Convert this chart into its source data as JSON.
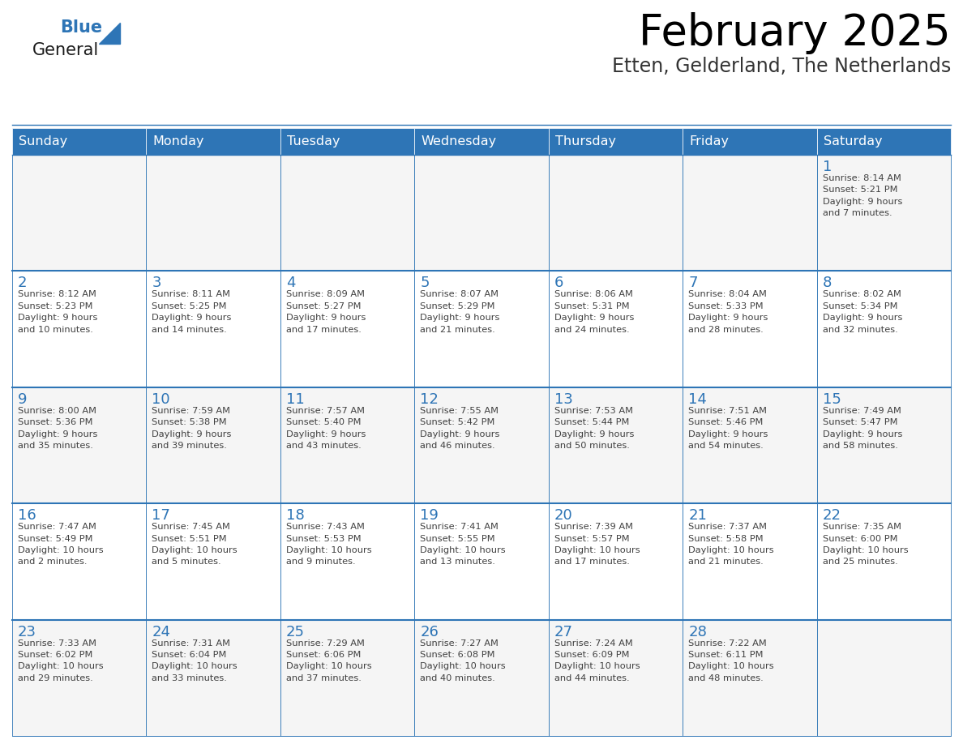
{
  "title": "February 2025",
  "subtitle": "Etten, Gelderland, The Netherlands",
  "header_color": "#2E75B6",
  "header_text_color": "#FFFFFF",
  "border_color": "#2E75B6",
  "row_divider_color": "#2E75B6",
  "title_color": "#000000",
  "subtitle_color": "#333333",
  "day_number_color": "#2E75B6",
  "cell_text_color": "#404040",
  "cell_bg_even": "#F5F5F5",
  "cell_bg_odd": "#FFFFFF",
  "days_of_week": [
    "Sunday",
    "Monday",
    "Tuesday",
    "Wednesday",
    "Thursday",
    "Friday",
    "Saturday"
  ],
  "weeks": [
    [
      {
        "day": null,
        "text": ""
      },
      {
        "day": null,
        "text": ""
      },
      {
        "day": null,
        "text": ""
      },
      {
        "day": null,
        "text": ""
      },
      {
        "day": null,
        "text": ""
      },
      {
        "day": null,
        "text": ""
      },
      {
        "day": 1,
        "text": "Sunrise: 8:14 AM\nSunset: 5:21 PM\nDaylight: 9 hours\nand 7 minutes."
      }
    ],
    [
      {
        "day": 2,
        "text": "Sunrise: 8:12 AM\nSunset: 5:23 PM\nDaylight: 9 hours\nand 10 minutes."
      },
      {
        "day": 3,
        "text": "Sunrise: 8:11 AM\nSunset: 5:25 PM\nDaylight: 9 hours\nand 14 minutes."
      },
      {
        "day": 4,
        "text": "Sunrise: 8:09 AM\nSunset: 5:27 PM\nDaylight: 9 hours\nand 17 minutes."
      },
      {
        "day": 5,
        "text": "Sunrise: 8:07 AM\nSunset: 5:29 PM\nDaylight: 9 hours\nand 21 minutes."
      },
      {
        "day": 6,
        "text": "Sunrise: 8:06 AM\nSunset: 5:31 PM\nDaylight: 9 hours\nand 24 minutes."
      },
      {
        "day": 7,
        "text": "Sunrise: 8:04 AM\nSunset: 5:33 PM\nDaylight: 9 hours\nand 28 minutes."
      },
      {
        "day": 8,
        "text": "Sunrise: 8:02 AM\nSunset: 5:34 PM\nDaylight: 9 hours\nand 32 minutes."
      }
    ],
    [
      {
        "day": 9,
        "text": "Sunrise: 8:00 AM\nSunset: 5:36 PM\nDaylight: 9 hours\nand 35 minutes."
      },
      {
        "day": 10,
        "text": "Sunrise: 7:59 AM\nSunset: 5:38 PM\nDaylight: 9 hours\nand 39 minutes."
      },
      {
        "day": 11,
        "text": "Sunrise: 7:57 AM\nSunset: 5:40 PM\nDaylight: 9 hours\nand 43 minutes."
      },
      {
        "day": 12,
        "text": "Sunrise: 7:55 AM\nSunset: 5:42 PM\nDaylight: 9 hours\nand 46 minutes."
      },
      {
        "day": 13,
        "text": "Sunrise: 7:53 AM\nSunset: 5:44 PM\nDaylight: 9 hours\nand 50 minutes."
      },
      {
        "day": 14,
        "text": "Sunrise: 7:51 AM\nSunset: 5:46 PM\nDaylight: 9 hours\nand 54 minutes."
      },
      {
        "day": 15,
        "text": "Sunrise: 7:49 AM\nSunset: 5:47 PM\nDaylight: 9 hours\nand 58 minutes."
      }
    ],
    [
      {
        "day": 16,
        "text": "Sunrise: 7:47 AM\nSunset: 5:49 PM\nDaylight: 10 hours\nand 2 minutes."
      },
      {
        "day": 17,
        "text": "Sunrise: 7:45 AM\nSunset: 5:51 PM\nDaylight: 10 hours\nand 5 minutes."
      },
      {
        "day": 18,
        "text": "Sunrise: 7:43 AM\nSunset: 5:53 PM\nDaylight: 10 hours\nand 9 minutes."
      },
      {
        "day": 19,
        "text": "Sunrise: 7:41 AM\nSunset: 5:55 PM\nDaylight: 10 hours\nand 13 minutes."
      },
      {
        "day": 20,
        "text": "Sunrise: 7:39 AM\nSunset: 5:57 PM\nDaylight: 10 hours\nand 17 minutes."
      },
      {
        "day": 21,
        "text": "Sunrise: 7:37 AM\nSunset: 5:58 PM\nDaylight: 10 hours\nand 21 minutes."
      },
      {
        "day": 22,
        "text": "Sunrise: 7:35 AM\nSunset: 6:00 PM\nDaylight: 10 hours\nand 25 minutes."
      }
    ],
    [
      {
        "day": 23,
        "text": "Sunrise: 7:33 AM\nSunset: 6:02 PM\nDaylight: 10 hours\nand 29 minutes."
      },
      {
        "day": 24,
        "text": "Sunrise: 7:31 AM\nSunset: 6:04 PM\nDaylight: 10 hours\nand 33 minutes."
      },
      {
        "day": 25,
        "text": "Sunrise: 7:29 AM\nSunset: 6:06 PM\nDaylight: 10 hours\nand 37 minutes."
      },
      {
        "day": 26,
        "text": "Sunrise: 7:27 AM\nSunset: 6:08 PM\nDaylight: 10 hours\nand 40 minutes."
      },
      {
        "day": 27,
        "text": "Sunrise: 7:24 AM\nSunset: 6:09 PM\nDaylight: 10 hours\nand 44 minutes."
      },
      {
        "day": 28,
        "text": "Sunrise: 7:22 AM\nSunset: 6:11 PM\nDaylight: 10 hours\nand 48 minutes."
      },
      {
        "day": null,
        "text": ""
      }
    ]
  ],
  "logo_text1": "General",
  "logo_text2": "Blue",
  "logo_color1": "#1a1a1a",
  "logo_color2": "#2E75B6",
  "logo_triangle_color": "#2E75B6",
  "fig_width": 11.88,
  "fig_height": 9.18,
  "dpi": 100
}
